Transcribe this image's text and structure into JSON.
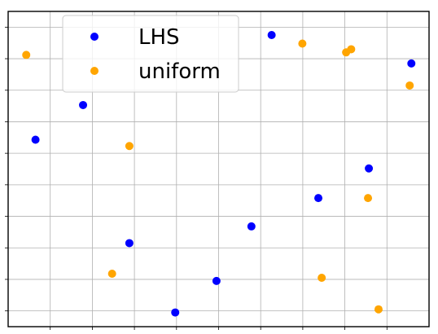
{
  "chart_data": {
    "type": "scatter",
    "xlim": [
      0,
      1
    ],
    "ylim": [
      0,
      1
    ],
    "grid": true,
    "tick_labels_visible": false,
    "legend_placement": "top-left",
    "series": [
      {
        "name": "LHS",
        "color": "#0000ff",
        "points": [
          {
            "x": 0.065,
            "y": 0.593
          },
          {
            "x": 0.178,
            "y": 0.703
          },
          {
            "x": 0.288,
            "y": 0.265
          },
          {
            "x": 0.397,
            "y": 0.045
          },
          {
            "x": 0.495,
            "y": 0.145
          },
          {
            "x": 0.578,
            "y": 0.318
          },
          {
            "x": 0.626,
            "y": 0.925
          },
          {
            "x": 0.737,
            "y": 0.408
          },
          {
            "x": 0.857,
            "y": 0.502
          },
          {
            "x": 0.958,
            "y": 0.835
          }
        ]
      },
      {
        "name": "uniform",
        "color": "#ffa500",
        "points": [
          {
            "x": 0.043,
            "y": 0.862
          },
          {
            "x": 0.247,
            "y": 0.168
          },
          {
            "x": 0.288,
            "y": 0.573
          },
          {
            "x": 0.699,
            "y": 0.898
          },
          {
            "x": 0.745,
            "y": 0.155
          },
          {
            "x": 0.803,
            "y": 0.87
          },
          {
            "x": 0.815,
            "y": 0.88
          },
          {
            "x": 0.855,
            "y": 0.408
          },
          {
            "x": 0.88,
            "y": 0.055
          },
          {
            "x": 0.954,
            "y": 0.765
          }
        ]
      }
    ]
  }
}
